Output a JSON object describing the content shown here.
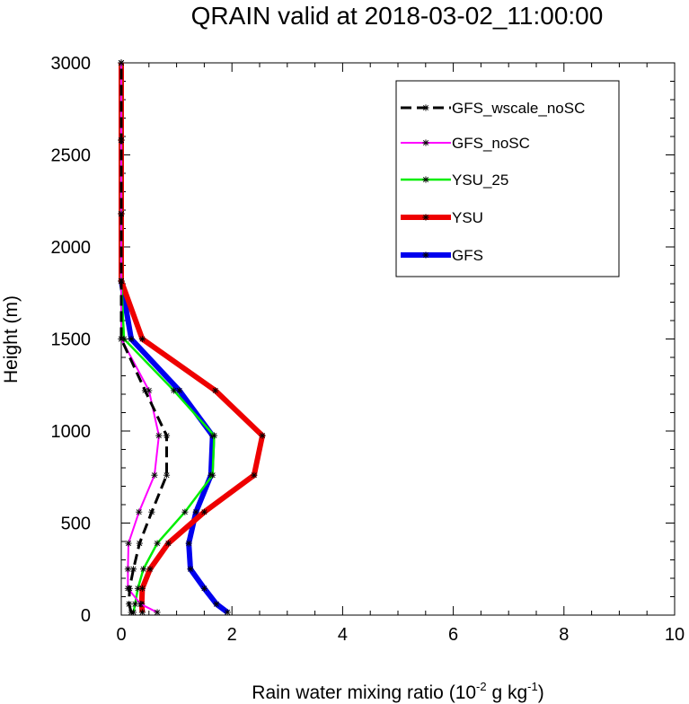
{
  "chart_data": {
    "type": "line",
    "title": "QRAIN valid at 2018-03-02_11:00:00",
    "xlabel_main": "Rain water mixing ratio (10",
    "xlabel_exp1": "-2",
    "xlabel_mid": " g kg",
    "xlabel_exp2": "-1",
    "xlabel_end": ")",
    "ylabel": "Height (m)",
    "xlim": [
      0,
      10
    ],
    "ylim": [
      0,
      3000
    ],
    "xticks": [
      0,
      2,
      4,
      6,
      8,
      10
    ],
    "yticks": [
      0,
      500,
      1000,
      1500,
      2000,
      2500,
      3000
    ],
    "xtick_labels": [
      "0",
      "2",
      "4",
      "6",
      "8",
      "10"
    ],
    "ytick_labels": [
      "0",
      "500",
      "1000",
      "1500",
      "2000",
      "2500",
      "3000"
    ],
    "grid": false,
    "legend_position": "top-right",
    "heights": [
      15,
      60,
      145,
      250,
      390,
      560,
      760,
      975,
      1220,
      1500,
      1815,
      2180,
      2580,
      3000
    ],
    "series": [
      {
        "name": "GFS_wscale_noSC",
        "color": "#000000",
        "dash": true,
        "width": 3,
        "values": [
          0.18,
          0.14,
          0.15,
          0.22,
          0.33,
          0.55,
          0.82,
          0.82,
          0.43,
          0.0,
          0.0,
          0.0,
          0.0,
          0.0
        ]
      },
      {
        "name": "GFS_noSC",
        "color": "#ff00ff",
        "dash": false,
        "width": 2,
        "values": [
          0.65,
          0.35,
          0.12,
          0.12,
          0.13,
          0.32,
          0.6,
          0.68,
          0.5,
          0.0,
          0.0,
          0.0,
          0.0,
          0.0
        ]
      },
      {
        "name": "YSU_25",
        "color": "#00ee00",
        "dash": false,
        "width": 2.5,
        "values": [
          0.22,
          0.25,
          0.3,
          0.4,
          0.65,
          1.15,
          1.65,
          1.68,
          0.95,
          0.05,
          0.0,
          0.0,
          0.0,
          0.0
        ]
      },
      {
        "name": "YSU",
        "color": "#ee0000",
        "dash": false,
        "width": 6,
        "values": [
          0.38,
          0.37,
          0.38,
          0.52,
          0.85,
          1.5,
          2.4,
          2.55,
          1.7,
          0.38,
          0.0,
          0.0,
          0.0,
          0.0
        ]
      },
      {
        "name": "GFS",
        "color": "#0000ee",
        "dash": false,
        "width": 6,
        "values": [
          1.92,
          1.72,
          1.5,
          1.25,
          1.22,
          1.35,
          1.62,
          1.65,
          1.05,
          0.18,
          0.0,
          0.0,
          0.0,
          0.0
        ]
      }
    ]
  }
}
